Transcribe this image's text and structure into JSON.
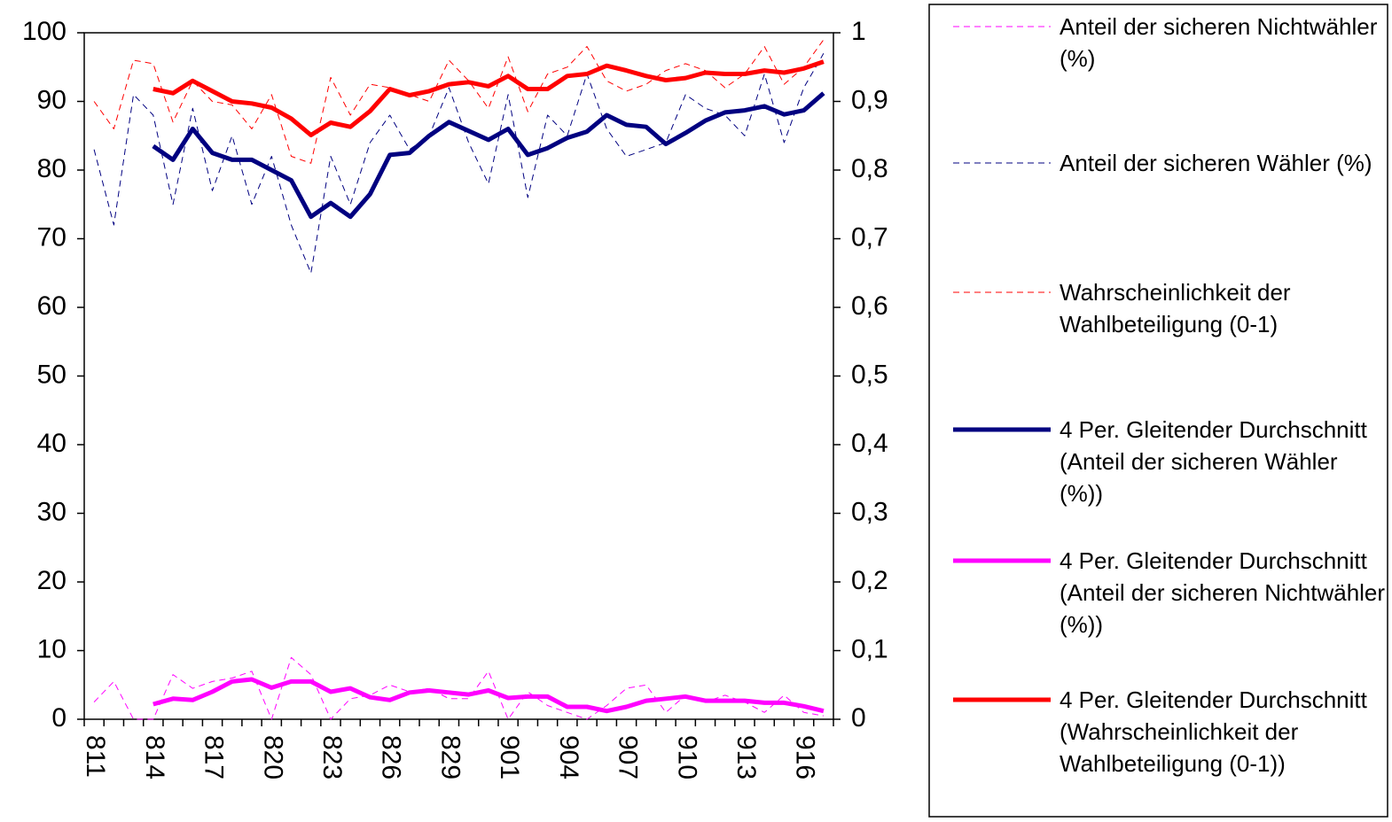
{
  "chart_data": {
    "type": "line",
    "categories": [
      "811",
      null,
      null,
      "814",
      null,
      null,
      "817",
      null,
      null,
      "820",
      null,
      null,
      "823",
      null,
      null,
      "826",
      null,
      null,
      "829",
      null,
      null,
      "901",
      null,
      null,
      "904",
      null,
      null,
      "907",
      null,
      null,
      "910",
      null,
      null,
      "913",
      null,
      null,
      "916",
      null
    ],
    "ylim": [
      0,
      100
    ],
    "yticks": [
      0,
      10,
      20,
      30,
      40,
      50,
      60,
      70,
      80,
      90,
      100
    ],
    "y2lim": [
      0,
      1
    ],
    "y2ticks": [
      0,
      {
        "value": 0.1,
        "label": "0,1"
      },
      {
        "value": 0.2,
        "label": "0,2"
      },
      {
        "value": 0.3,
        "label": "0,3"
      },
      {
        "value": 0.4,
        "label": "0,4"
      },
      {
        "value": 0.5,
        "label": "0,5"
      },
      {
        "value": 0.6,
        "label": "0,6"
      },
      {
        "value": 0.7,
        "label": "0,7"
      },
      {
        "value": 0.8,
        "label": "0,8"
      },
      {
        "value": 0.9,
        "label": "0,9"
      },
      1
    ],
    "grid": false,
    "legend": "right",
    "series": [
      {
        "name": "Anteil der sicheren Nichtwähler (%)",
        "color": "#ff00ff",
        "style": "dashed",
        "width": 1,
        "values": [
          2.5,
          5.5,
          0,
          0,
          6.5,
          4.5,
          5.5,
          6,
          7,
          0,
          9,
          6.5,
          0,
          3,
          3.5,
          5,
          4,
          4.5,
          3,
          3,
          7,
          0,
          4,
          2,
          1,
          0,
          2,
          4.5,
          5,
          1,
          3.5,
          2.5,
          3.5,
          2.5,
          1,
          3.5,
          1,
          0.5
        ]
      },
      {
        "name": "Anteil der sicheren Wähler (%)",
        "color": "#000080",
        "style": "dashed",
        "width": 1,
        "values": [
          83,
          72,
          91,
          88,
          75,
          89,
          77,
          85,
          75,
          82,
          72,
          65,
          82,
          75,
          84,
          88,
          83,
          85,
          92,
          84,
          78,
          91,
          76,
          88,
          85,
          94,
          86,
          82,
          83,
          84,
          91,
          89,
          88,
          85,
          94,
          84,
          92,
          97
        ]
      },
      {
        "name": "Wahrscheinlichkeit der Wahlbeteiligung (0-1)",
        "color": "#ff0000",
        "style": "dashed",
        "width": 1,
        "axis": "y2",
        "values": [
          0.9,
          0.86,
          0.96,
          0.955,
          0.87,
          0.93,
          0.9,
          0.895,
          0.86,
          0.91,
          0.82,
          0.81,
          0.935,
          0.88,
          0.925,
          0.92,
          0.91,
          0.9,
          0.96,
          0.93,
          0.89,
          0.965,
          0.885,
          0.94,
          0.95,
          0.98,
          0.93,
          0.915,
          0.925,
          0.945,
          0.955,
          0.945,
          0.92,
          0.94,
          0.98,
          0.925,
          0.95,
          0.99
        ]
      },
      {
        "name": "4 Per. Gleitender Durchschnitt (Anteil der sicheren Wähler (%))",
        "color": "#000080",
        "style": "solid",
        "width": 5,
        "values": [
          null,
          null,
          null,
          83.5,
          81.5,
          86,
          82.5,
          81.5,
          81.5,
          80,
          78.5,
          73.2,
          75.2,
          73.2,
          76.5,
          82.2,
          82.5,
          85,
          87,
          85.7,
          84.4,
          86,
          82.2,
          83.2,
          84.7,
          85.6,
          88,
          86.6,
          86.3,
          83.8,
          85.4,
          87.2,
          88.4,
          88.7,
          89.3,
          88.1,
          88.7,
          91.2
        ]
      },
      {
        "name": "4 Per. Gleitender Durchschnitt (Anteil der sicheren Nichtwähler (%))",
        "color": "#ff00ff",
        "style": "solid",
        "width": 5,
        "values": [
          null,
          null,
          null,
          2.2,
          3,
          2.8,
          4,
          5.5,
          5.8,
          4.6,
          5.5,
          5.5,
          4,
          4.5,
          3.2,
          2.8,
          3.9,
          4.2,
          3.9,
          3.6,
          4.2,
          3.1,
          3.3,
          3.3,
          1.8,
          1.8,
          1.2,
          1.8,
          2.7,
          3,
          3.3,
          2.7,
          2.7,
          2.7,
          2.4,
          2.4,
          1.9,
          1.2
        ]
      },
      {
        "name": "4 Per. Gleitender Durchschnitt (Wahrscheinlichkeit der Wahlbeteiligung (0-1))",
        "color": "#ff0000",
        "style": "solid",
        "width": 5,
        "axis": "y2",
        "values": [
          null,
          null,
          null,
          0.918,
          0.912,
          0.93,
          0.915,
          0.9,
          0.897,
          0.891,
          0.875,
          0.851,
          0.869,
          0.863,
          0.886,
          0.918,
          0.909,
          0.915,
          0.925,
          0.928,
          0.922,
          0.937,
          0.918,
          0.918,
          0.937,
          0.94,
          0.952,
          0.945,
          0.937,
          0.931,
          0.934,
          0.942,
          0.94,
          0.94,
          0.945,
          0.942,
          0.948,
          0.958
        ]
      }
    ]
  }
}
